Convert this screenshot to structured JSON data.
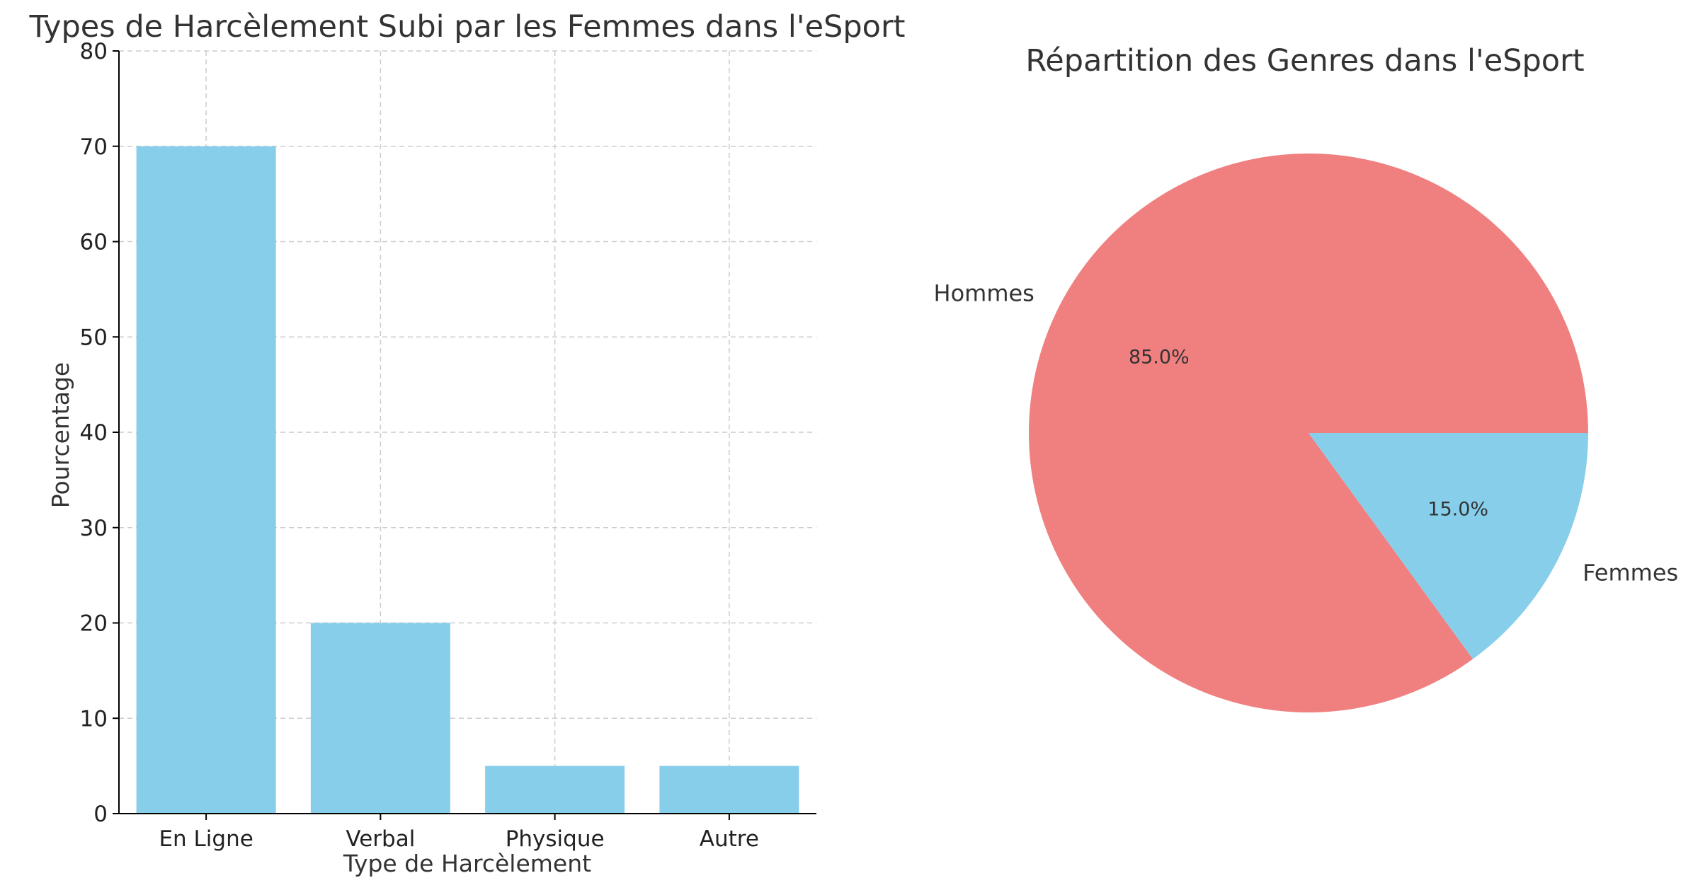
{
  "chart_data": [
    {
      "type": "bar",
      "title": "Types de Harcèlement Subi par les Femmes dans l'eSport",
      "xlabel": "Type de Harcèlement",
      "ylabel": "Pourcentage",
      "categories": [
        "En Ligne",
        "Verbal",
        "Physique",
        "Autre"
      ],
      "values": [
        70,
        20,
        5,
        5
      ],
      "ylim": [
        0,
        80
      ],
      "yticks": [
        0,
        10,
        20,
        30,
        40,
        50,
        60,
        70,
        80
      ],
      "bar_color": "#87ceeb",
      "grid": true
    },
    {
      "type": "pie",
      "title": "Répartition des Genres dans l'eSport",
      "labels": [
        "Hommes",
        "Femmes"
      ],
      "values": [
        85,
        15
      ],
      "pct_labels": [
        "85.0%",
        "15.0%"
      ],
      "colors": [
        "#f08080",
        "#87ceeb"
      ]
    }
  ]
}
